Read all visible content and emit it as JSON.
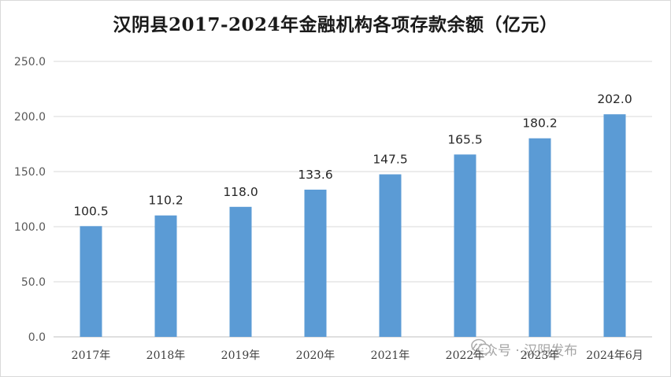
{
  "chart_data": {
    "type": "bar",
    "title": "汉阴县2017-2024年金融机构各项存款余额（亿元）",
    "categories": [
      "2017年",
      "2018年",
      "2019年",
      "2020年",
      "2021年",
      "2022年",
      "2023年",
      "2024年6月"
    ],
    "values": [
      100.5,
      110.2,
      118.0,
      133.6,
      147.5,
      165.5,
      180.2,
      202.0
    ],
    "data_labels": [
      "100.5",
      "110.2",
      "118.0",
      "133.6",
      "147.5",
      "165.5",
      "180.2",
      "202.0"
    ],
    "yticks": [
      "0.0",
      "50.0",
      "100.0",
      "150.0",
      "200.0",
      "250.0"
    ],
    "ylim": [
      0,
      250
    ],
    "xlabel": "",
    "ylabel": "",
    "grid": true,
    "legend": "none",
    "bar_color": "#5b9bd5",
    "grid_color": "#d9d9d9"
  },
  "watermark": {
    "text": "公众号 · 汉阴发布",
    "icon": "wechat-icon"
  }
}
